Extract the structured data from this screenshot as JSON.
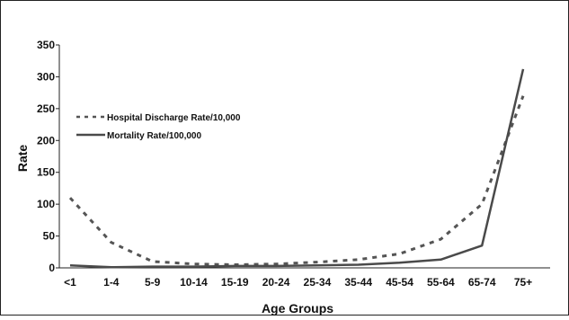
{
  "chart_data": {
    "type": "line",
    "xlabel": "Age Groups",
    "ylabel": "Rate",
    "ylim": [
      0,
      350
    ],
    "yticks": [
      0,
      50,
      100,
      150,
      200,
      250,
      300,
      350
    ],
    "grid": false,
    "legend_position": "top-left",
    "categories": [
      "<1",
      "1-4",
      "5-9",
      "10-14",
      "15-19",
      "20-24",
      "25-34",
      "35-44",
      "45-54",
      "55-64",
      "65-74",
      "75+"
    ],
    "series": [
      {
        "name": "Hospital Discharge Rate/10,000",
        "style": "dashed",
        "color": "#555555",
        "values": [
          110,
          40,
          10,
          6,
          5,
          6,
          9,
          13,
          22,
          45,
          100,
          270
        ]
      },
      {
        "name": "Mortality Rate/100,000",
        "style": "solid",
        "color": "#4a4a4a",
        "values": [
          4,
          1,
          2,
          2,
          3,
          3,
          4,
          5,
          8,
          13,
          35,
          312
        ]
      }
    ]
  }
}
